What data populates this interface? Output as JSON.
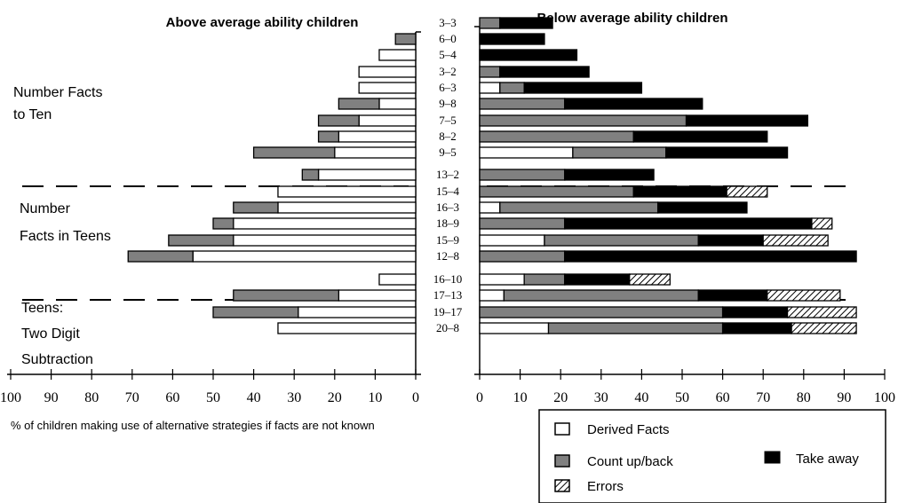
{
  "chart_data": {
    "type": "bar",
    "left_title": "Above average ability children",
    "right_title": "Below average ability children",
    "x_caption": "% of children making use of alternative strategies if facts are not known",
    "left_ticks": [
      "100",
      "90",
      "80",
      "70",
      "60",
      "50",
      "40",
      "30",
      "20",
      "10",
      "0"
    ],
    "right_ticks": [
      "0",
      "10",
      "20",
      "30",
      "40",
      "50",
      "60",
      "70",
      "80",
      "90",
      "100"
    ],
    "xlim": [
      0,
      100
    ],
    "groups": [
      {
        "label_lines": [
          "Number Facts",
          "to Ten"
        ],
        "rows": [
          0,
          8
        ]
      },
      {
        "label_lines": [
          "Number",
          "Facts in Teens"
        ],
        "rows": [
          9,
          14
        ]
      },
      {
        "label_lines": [
          "Teens:",
          "Two Digit",
          "Subtraction"
        ],
        "rows": [
          15,
          18
        ]
      }
    ],
    "legend": {
      "derived": "Derived Facts",
      "count": "Count up/back",
      "take": "Take away",
      "errors": "Errors"
    },
    "colors": {
      "derived": "#ffffff",
      "count": "#808080",
      "take": "#000000"
    },
    "categories": [
      "3–3",
      "6–0",
      "5–4",
      "3–2",
      "6–3",
      "9–8",
      "7–5",
      "8–2",
      "9–5",
      "13–2",
      "15–4",
      "16–3",
      "18–9",
      "15–9",
      "12–8",
      "16–10",
      "17–13",
      "19–17",
      "20–8"
    ],
    "above_average": [
      {
        "derived": 0,
        "count": 0
      },
      {
        "derived": 0,
        "count": 5
      },
      {
        "derived": 9,
        "count": 0
      },
      {
        "derived": 14,
        "count": 0
      },
      {
        "derived": 14,
        "count": 0
      },
      {
        "derived": 9,
        "count": 10
      },
      {
        "derived": 14,
        "count": 10
      },
      {
        "derived": 19,
        "count": 5
      },
      {
        "derived": 20,
        "count": 20
      },
      {
        "derived": 24,
        "count": 4
      },
      {
        "derived": 34,
        "count": 0
      },
      {
        "derived": 34,
        "count": 11
      },
      {
        "derived": 45,
        "count": 5
      },
      {
        "derived": 45,
        "count": 16
      },
      {
        "derived": 55,
        "count": 16
      },
      {
        "derived": 9,
        "count": 0
      },
      {
        "derived": 19,
        "count": 26
      },
      {
        "derived": 29,
        "count": 21
      },
      {
        "derived": 34,
        "count": 0
      }
    ],
    "below_average": [
      {
        "derived": 0,
        "count": 5,
        "take": 13,
        "errors": 0
      },
      {
        "derived": 0,
        "count": 0,
        "take": 16,
        "errors": 0
      },
      {
        "derived": 0,
        "count": 0,
        "take": 24,
        "errors": 0
      },
      {
        "derived": 0,
        "count": 5,
        "take": 22,
        "errors": 0
      },
      {
        "derived": 5,
        "count": 6,
        "take": 29,
        "errors": 0
      },
      {
        "derived": 0,
        "count": 21,
        "take": 34,
        "errors": 0
      },
      {
        "derived": 0,
        "count": 51,
        "take": 30,
        "errors": 0
      },
      {
        "derived": 0,
        "count": 38,
        "take": 33,
        "errors": 0
      },
      {
        "derived": 23,
        "count": 23,
        "take": 30,
        "errors": 0
      },
      {
        "derived": 0,
        "count": 21,
        "take": 22,
        "errors": 0
      },
      {
        "derived": 0,
        "count": 38,
        "take": 23,
        "errors": 10
      },
      {
        "derived": 5,
        "count": 39,
        "take": 22,
        "errors": 0
      },
      {
        "derived": 0,
        "count": 21,
        "take": 61,
        "errors": 5
      },
      {
        "derived": 16,
        "count": 38,
        "take": 16,
        "errors": 16
      },
      {
        "derived": 0,
        "count": 21,
        "take": 72,
        "errors": 0
      },
      {
        "derived": 11,
        "count": 10,
        "take": 16,
        "errors": 10
      },
      {
        "derived": 6,
        "count": 48,
        "take": 17,
        "errors": 18
      },
      {
        "derived": 0,
        "count": 60,
        "take": 16,
        "errors": 17
      },
      {
        "derived": 17,
        "count": 43,
        "take": 17,
        "errors": 16
      }
    ]
  }
}
